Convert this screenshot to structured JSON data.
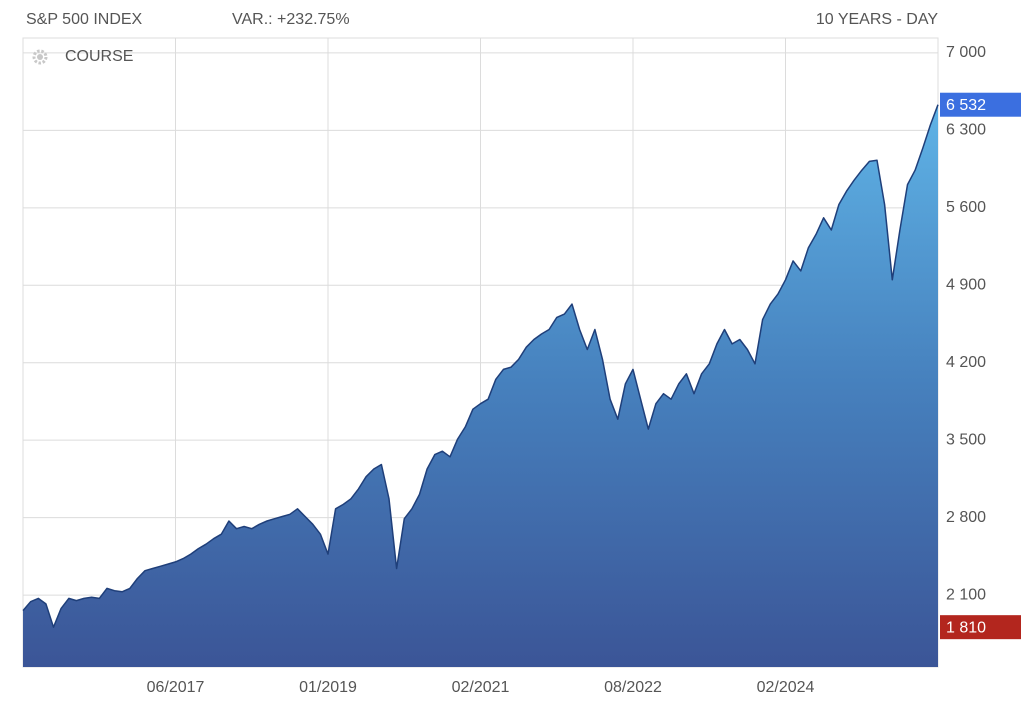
{
  "chart_data": {
    "type": "area",
    "title": "S&P 500 INDEX",
    "subtitle": "VAR.: +232.75%",
    "period": "10 YEARS - DAY",
    "categories": [
      null,
      null,
      null,
      null,
      null,
      null,
      null,
      null,
      null,
      null,
      null,
      null,
      null,
      null,
      null,
      null,
      null,
      null,
      null,
      null,
      "06/2017",
      null,
      null,
      null,
      null,
      null,
      null,
      null,
      null,
      null,
      null,
      null,
      null,
      null,
      null,
      null,
      null,
      null,
      null,
      null,
      "01/2019",
      null,
      null,
      null,
      null,
      null,
      null,
      null,
      null,
      null,
      null,
      null,
      null,
      null,
      null,
      null,
      null,
      null,
      null,
      null,
      "02/2021",
      null,
      null,
      null,
      null,
      null,
      null,
      null,
      null,
      null,
      null,
      null,
      null,
      null,
      null,
      null,
      null,
      null,
      null,
      null,
      "08/2022",
      null,
      null,
      null,
      null,
      null,
      null,
      null,
      null,
      null,
      null,
      null,
      null,
      null,
      null,
      null,
      null,
      null,
      null,
      null,
      "02/2024",
      null,
      null,
      null,
      null,
      null,
      null,
      null,
      null,
      null,
      null,
      null,
      null,
      null,
      null,
      null,
      null,
      null,
      null,
      null,
      null
    ],
    "series": [
      {
        "name": "COURSE",
        "color": "#1f3f7a",
        "values": [
          1960,
          2040,
          2070,
          2020,
          1810,
          1980,
          2070,
          2050,
          2070,
          2080,
          2070,
          2160,
          2140,
          2130,
          2160,
          2250,
          2320,
          2340,
          2360,
          2380,
          2400,
          2430,
          2470,
          2520,
          2560,
          2610,
          2650,
          2770,
          2700,
          2720,
          2700,
          2740,
          2770,
          2790,
          2810,
          2830,
          2880,
          2810,
          2740,
          2650,
          2470,
          2880,
          2920,
          2970,
          3060,
          3170,
          3240,
          3280,
          2970,
          2340,
          2790,
          2880,
          3010,
          3240,
          3370,
          3400,
          3350,
          3510,
          3620,
          3780,
          3830,
          3870,
          4050,
          4140,
          4160,
          4230,
          4340,
          4410,
          4460,
          4500,
          4610,
          4640,
          4730,
          4500,
          4320,
          4500,
          4230,
          3870,
          3690,
          4010,
          4140,
          3870,
          3600,
          3830,
          3920,
          3870,
          4010,
          4100,
          3920,
          4100,
          4190,
          4370,
          4500,
          4370,
          4410,
          4320,
          4190,
          4590,
          4730,
          4820,
          4950,
          5120,
          5030,
          5240,
          5360,
          5510,
          5400,
          5630,
          5750,
          5850,
          5940,
          6020,
          6030,
          5630,
          4950,
          5400,
          5810,
          5940,
          6140,
          6350,
          6532
        ]
      }
    ],
    "ylim": [
      1450,
      7135
    ],
    "yticks": [
      {
        "value": 2100,
        "label": "2 100"
      },
      {
        "value": 2800,
        "label": "2 800"
      },
      {
        "value": 3500,
        "label": "3 500"
      },
      {
        "value": 4200,
        "label": "4 200"
      },
      {
        "value": 4900,
        "label": "4 900"
      },
      {
        "value": 5600,
        "label": "5 600"
      },
      {
        "value": 6300,
        "label": "6 300"
      },
      {
        "value": 7000,
        "label": "7 000"
      }
    ],
    "markers": [
      {
        "value": 6532,
        "label": "6 532",
        "color": "#3b6fe0"
      },
      {
        "value": 1810,
        "label": "1 810",
        "color": "#b3261e"
      }
    ],
    "grid": true
  }
}
